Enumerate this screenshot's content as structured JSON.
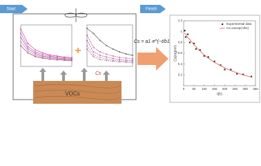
{
  "labels": {
    "start": "Start",
    "finish": "Finish",
    "formula": "Cs = a1·e^(−t/b1)",
    "source": "VOCs",
    "concentration": "Cs"
  },
  "chart_data": [
    {
      "type": "line",
      "x": [
        0,
        50,
        100,
        150,
        200,
        250,
        300,
        350
      ],
      "xlim": [
        0,
        350
      ],
      "ylim": [
        0,
        4
      ],
      "series": [
        {
          "color": "#e0408a",
          "values": [
            3.6,
            2.2,
            1.6,
            1.3,
            1.1,
            1.0,
            0.9,
            0.85
          ]
        },
        {
          "color": "#c060b0",
          "values": [
            3.2,
            1.9,
            1.4,
            1.15,
            1.0,
            0.9,
            0.82,
            0.78
          ]
        },
        {
          "color": "#9060c0",
          "values": [
            2.8,
            1.7,
            1.25,
            1.0,
            0.9,
            0.8,
            0.74,
            0.7
          ]
        },
        {
          "color": "#d080a0",
          "values": [
            2.4,
            1.5,
            1.1,
            0.9,
            0.8,
            0.72,
            0.66,
            0.62
          ]
        },
        {
          "color": "#a04070",
          "values": [
            2.0,
            1.3,
            0.95,
            0.8,
            0.7,
            0.64,
            0.6,
            0.56
          ]
        }
      ]
    },
    {
      "type": "line",
      "x": [
        0,
        50,
        100,
        150,
        200,
        250,
        300,
        350
      ],
      "xlim": [
        0,
        350
      ],
      "ylim": [
        0,
        1.2
      ],
      "series": [
        {
          "color": "#555555",
          "values": [
            1.1,
            0.95,
            0.75,
            0.6,
            0.5,
            0.42,
            0.36,
            0.32
          ]
        },
        {
          "color": "#c04080",
          "values": [
            0.9,
            0.55,
            0.42,
            0.35,
            0.3,
            0.26,
            0.24,
            0.22
          ]
        },
        {
          "color": "#8050b0",
          "values": [
            0.75,
            0.42,
            0.32,
            0.27,
            0.23,
            0.2,
            0.18,
            0.17
          ]
        },
        {
          "color": "#e070a0",
          "values": [
            0.6,
            0.34,
            0.26,
            0.21,
            0.18,
            0.16,
            0.15,
            0.14
          ]
        },
        {
          "color": "#a06090",
          "values": [
            0.5,
            0.28,
            0.2,
            0.17,
            0.15,
            0.13,
            0.12,
            0.11
          ]
        }
      ]
    },
    {
      "type": "scatter",
      "x": [
        5,
        10,
        20,
        30,
        50,
        60,
        80,
        100,
        120,
        150,
        180,
        200,
        230,
        260,
        290,
        330
      ],
      "xlim": [
        0,
        350
      ],
      "ylim": [
        0,
        1.2
      ],
      "xticks": [
        0,
        50,
        100,
        150,
        200,
        250,
        300,
        350
      ],
      "yticks": [
        0.2,
        0.4,
        0.6,
        0.8,
        1.0,
        1.2
      ],
      "xlabel": "t(h)",
      "ylabel": "Cs(mg/m³)",
      "series": [
        {
          "name": "Experimental data",
          "color": "#333333",
          "marker": "square",
          "values": [
            1.02,
            0.9,
            0.95,
            0.8,
            0.78,
            0.68,
            0.66,
            0.55,
            0.53,
            0.45,
            0.38,
            0.3,
            0.3,
            0.22,
            0.21,
            0.17
          ]
        },
        {
          "name": "Cs=a1exp(-t/b1)",
          "color": "#e05050",
          "marker": "line",
          "values": [
            0.97,
            0.95,
            0.89,
            0.85,
            0.76,
            0.72,
            0.64,
            0.57,
            0.51,
            0.43,
            0.37,
            0.33,
            0.28,
            0.24,
            0.2,
            0.16
          ]
        }
      ]
    }
  ]
}
